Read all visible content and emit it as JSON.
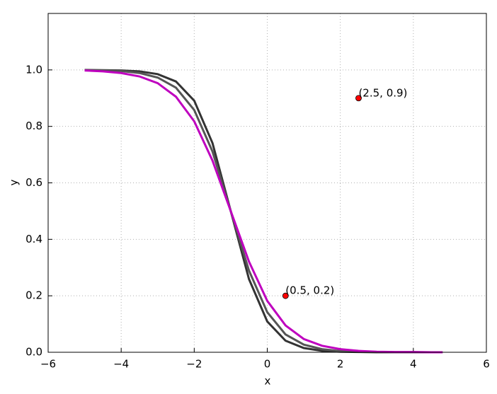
{
  "chart_data": {
    "type": "line",
    "x_label": "x",
    "y_label": "y",
    "x": [
      -5,
      -4.5,
      -4,
      -3.5,
      -3,
      -2.5,
      -2,
      -1.5,
      -1,
      -0.5,
      0,
      0.5,
      1,
      1.5,
      2,
      2.5,
      3,
      3.5,
      4,
      4.5,
      4.8
    ],
    "series": [
      {
        "color": "#333333",
        "values": [
          1.0,
          0.999,
          0.998,
          0.995,
          0.985,
          0.959,
          0.891,
          0.741,
          0.5,
          0.259,
          0.109,
          0.041,
          0.015,
          0.005,
          0.002,
          0.001,
          0,
          0,
          0,
          0,
          0
        ]
      },
      {
        "color": "#555555",
        "values": [
          0.999,
          0.998,
          0.996,
          0.989,
          0.973,
          0.937,
          0.858,
          0.711,
          0.5,
          0.289,
          0.142,
          0.063,
          0.027,
          0.011,
          0.004,
          0.002,
          0.001,
          0,
          0,
          0,
          0
        ]
      },
      {
        "color": "#bf00bf",
        "values": [
          0.998,
          0.995,
          0.989,
          0.977,
          0.953,
          0.905,
          0.818,
          0.679,
          0.5,
          0.321,
          0.182,
          0.095,
          0.047,
          0.023,
          0.011,
          0.005,
          0.002,
          0.001,
          0.001,
          0,
          0
        ]
      }
    ],
    "points": {
      "x": [
        0.5,
        2.5
      ],
      "y": [
        0.2,
        0.9
      ],
      "labels": [
        "(0.5, 0.2)",
        "(2.5, 0.9)"
      ],
      "color": "#ff0000"
    },
    "xlim": [
      -6,
      6
    ],
    "ylim": [
      0,
      1.2
    ],
    "xticks": [
      {
        "value": -6,
        "label": "−6"
      },
      {
        "value": -4,
        "label": "−4"
      },
      {
        "value": -2,
        "label": "−2"
      },
      0,
      2,
      4,
      6
    ],
    "yticks": [
      {
        "value": 0,
        "label": "0.0"
      },
      0.2,
      0.4,
      0.6,
      0.8,
      {
        "value": 1,
        "label": "1.0"
      }
    ],
    "grid": true
  }
}
